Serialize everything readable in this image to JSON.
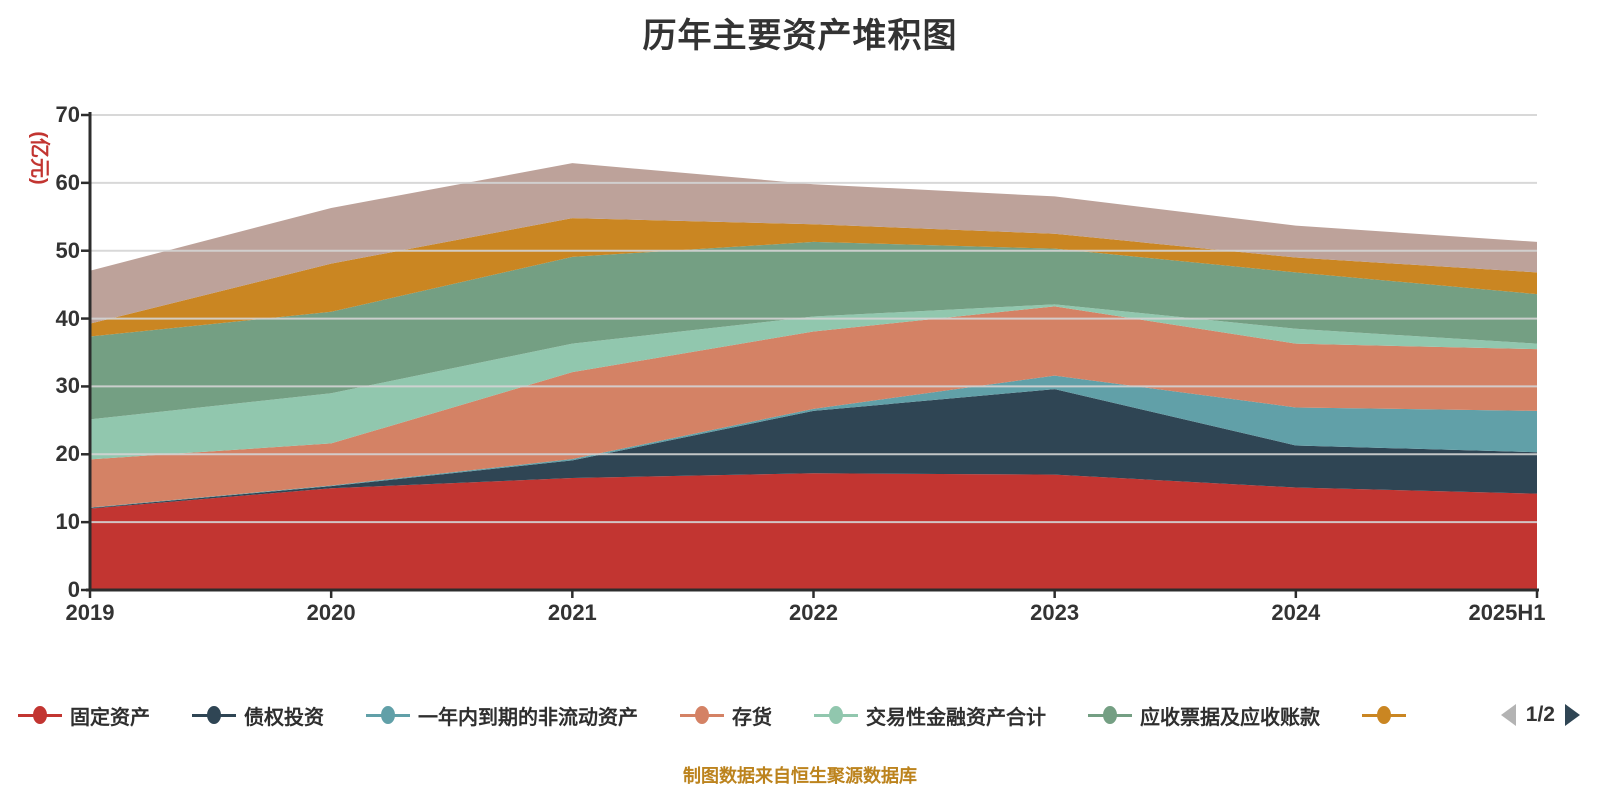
{
  "title": "历年主要资产堆积图",
  "y_axis": {
    "unit_label": "(亿元)",
    "unit_label_color": "#c23531",
    "ticks": [
      0,
      10,
      20,
      30,
      40,
      50,
      60,
      70
    ]
  },
  "x_axis": {
    "categories": [
      "2019",
      "2020",
      "2021",
      "2022",
      "2023",
      "2024",
      "2025H1"
    ]
  },
  "chart_data": {
    "type": "area",
    "stacked": true,
    "title": "历年主要资产堆积图",
    "ylabel": "(亿元)",
    "ylim": [
      0,
      70
    ],
    "y_interval": 10,
    "grid": true,
    "legend_position": "bottom",
    "categories": [
      "2019",
      "2020",
      "2021",
      "2022",
      "2023",
      "2024",
      "2025H1"
    ],
    "series": [
      {
        "key": "fixed-assets",
        "label": "固定资产",
        "color": "#c23531",
        "values": [
          12.0,
          15.0,
          16.5,
          17.2,
          17.0,
          15.1,
          14.2
        ]
      },
      {
        "key": "debt-investments",
        "label": "债权投资",
        "color": "#2f4554",
        "values": [
          0.1,
          0.3,
          2.6,
          9.2,
          12.6,
          6.2,
          6.1
        ]
      },
      {
        "key": "noncurrent-due-within-1y",
        "label": "一年内到期的非流动资产",
        "color": "#61a0a8",
        "values": [
          0.05,
          0.1,
          0.2,
          0.3,
          2.0,
          5.6,
          6.1
        ]
      },
      {
        "key": "inventory",
        "label": "存货",
        "color": "#d48265",
        "values": [
          7.1,
          6.2,
          12.8,
          11.4,
          10.2,
          9.4,
          9.1
        ]
      },
      {
        "key": "trading-financial-assets",
        "label": "交易性金融资产合计",
        "color": "#91c7ae",
        "values": [
          5.9,
          7.4,
          4.2,
          2.2,
          0.3,
          2.2,
          0.8
        ]
      },
      {
        "key": "notes-accounts-receivable",
        "label": "应收票据及应收账款",
        "color": "#749f83",
        "values": [
          12.2,
          12.0,
          12.8,
          11.0,
          8.2,
          8.3,
          7.3
        ]
      },
      {
        "key": "series-orange",
        "label": "",
        "color": "#ca8622",
        "values": [
          1.9,
          7.1,
          5.7,
          2.6,
          2.2,
          2.2,
          3.2
        ]
      },
      {
        "key": "series-mauve",
        "label": "",
        "color": "#bda29a",
        "values": [
          7.8,
          8.2,
          8.1,
          5.9,
          5.5,
          4.7,
          4.5
        ]
      }
    ]
  },
  "legend": {
    "items": [
      {
        "key": "fixed-assets",
        "label": "固定资产",
        "color": "#c23531"
      },
      {
        "key": "debt-investments",
        "label": "债权投资",
        "color": "#2f4554"
      },
      {
        "key": "noncurrent-due-within-1y",
        "label": "一年内到期的非流动资产",
        "color": "#61a0a8"
      },
      {
        "key": "inventory",
        "label": "存货",
        "color": "#d48265"
      },
      {
        "key": "trading-financial-assets",
        "label": "交易性金融资产合计",
        "color": "#91c7ae"
      },
      {
        "key": "notes-accounts-receivable",
        "label": "应收票据及应收账款",
        "color": "#749f83"
      },
      {
        "key": "series-orange",
        "label": "",
        "color": "#ca8622"
      }
    ],
    "pager": {
      "label": "1/2",
      "prev_color": "#b3b3b3",
      "next_color": "#2f4554"
    }
  },
  "footer": {
    "note": "制图数据来自恒生聚源数据库",
    "note_color": "#bc831d"
  },
  "style_colors": {
    "axis_line": "#2d2d2d",
    "tick_label": "#333333",
    "gridline": "#d4d4d4",
    "title": "#333333"
  }
}
